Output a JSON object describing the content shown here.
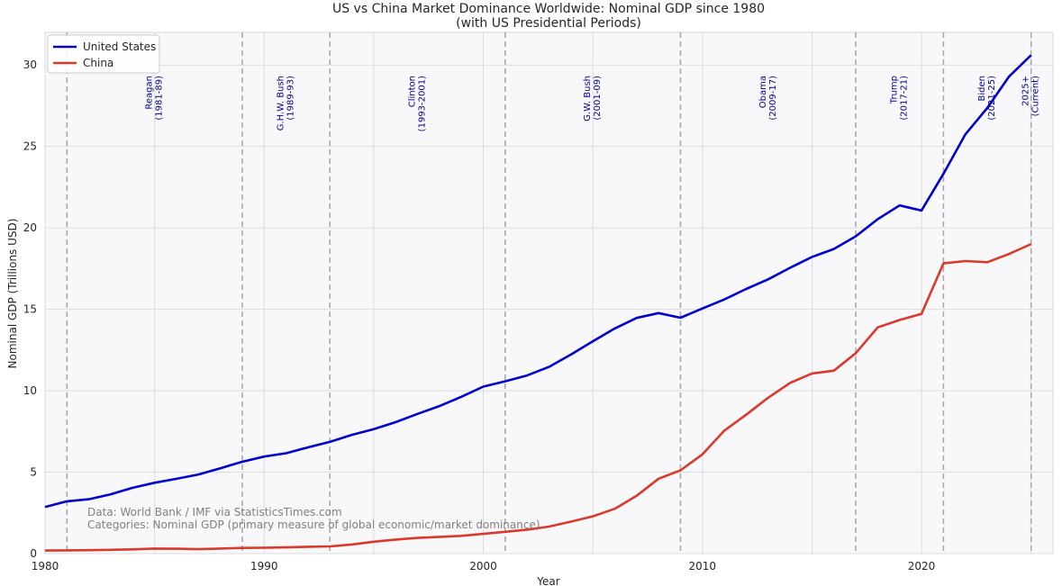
{
  "chart_data": {
    "type": "line",
    "title_line1": "US vs China Market Dominance Worldwide: Nominal GDP since 1980",
    "title_line2": "(with US Presidential Periods)",
    "xlabel": "Year",
    "ylabel": "Nominal GDP (Trillions USD)",
    "xlim": [
      1980,
      2026
    ],
    "ylim": [
      0,
      32
    ],
    "xticks": [
      1980,
      1990,
      2000,
      2010,
      2020
    ],
    "yticks": [
      0,
      5,
      10,
      15,
      20,
      25,
      30
    ],
    "grid": true,
    "legend_position": "top-left",
    "x": [
      1980,
      1981,
      1982,
      1983,
      1984,
      1985,
      1986,
      1987,
      1988,
      1989,
      1990,
      1991,
      1992,
      1993,
      1994,
      1995,
      1996,
      1997,
      1998,
      1999,
      2000,
      2001,
      2002,
      2003,
      2004,
      2005,
      2006,
      2007,
      2008,
      2009,
      2010,
      2011,
      2012,
      2013,
      2014,
      2015,
      2016,
      2017,
      2018,
      2019,
      2020,
      2021,
      2022,
      2023,
      2024,
      2025
    ],
    "series": [
      {
        "name": "United States",
        "color": "#0000cd",
        "values": [
          2.86,
          3.21,
          3.34,
          3.64,
          4.04,
          4.35,
          4.59,
          4.86,
          5.24,
          5.64,
          5.96,
          6.16,
          6.52,
          6.86,
          7.29,
          7.64,
          8.07,
          8.58,
          9.06,
          9.63,
          10.25,
          10.58,
          10.94,
          11.46,
          12.22,
          13.04,
          13.82,
          14.47,
          14.77,
          14.48,
          15.05,
          15.6,
          16.25,
          16.84,
          17.55,
          18.21,
          18.7,
          19.48,
          20.53,
          21.38,
          21.06,
          23.32,
          25.74,
          27.36,
          29.3,
          30.6
        ]
      },
      {
        "name": "China",
        "color": "#d93a2b",
        "values": [
          0.19,
          0.2,
          0.21,
          0.23,
          0.26,
          0.31,
          0.3,
          0.27,
          0.31,
          0.35,
          0.36,
          0.38,
          0.42,
          0.44,
          0.56,
          0.73,
          0.86,
          0.96,
          1.03,
          1.09,
          1.21,
          1.34,
          1.47,
          1.66,
          1.96,
          2.29,
          2.75,
          3.55,
          4.6,
          5.11,
          6.09,
          7.55,
          8.53,
          9.57,
          10.48,
          11.06,
          11.23,
          12.31,
          13.89,
          14.34,
          14.72,
          17.82,
          17.96,
          17.89,
          18.4,
          19.0
        ]
      }
    ],
    "presidents": [
      {
        "start": 1981,
        "name": "Reagan",
        "years": "(1981-89)",
        "label_x": 1985
      },
      {
        "start": 1989,
        "name": "G.H.W. Bush",
        "years": "(1989-93)",
        "label_x": 1991
      },
      {
        "start": 1993,
        "name": "Clinton",
        "years": "(1993-2001)",
        "label_x": 1997
      },
      {
        "start": 2001,
        "name": "G.W. Bush",
        "years": "(2001-09)",
        "label_x": 2005
      },
      {
        "start": 2009,
        "name": "Obama",
        "years": "(2009-17)",
        "label_x": 2013
      },
      {
        "start": 2017,
        "name": "Trump",
        "years": "(2017-21)",
        "label_x": 2019
      },
      {
        "start": 2021,
        "name": "Biden",
        "years": "(2021-25)",
        "label_x": 2023
      },
      {
        "start": 2025,
        "name": "2025+",
        "years": "(Current)",
        "label_x": 2025
      }
    ],
    "notes": [
      "Data: World Bank / IMF via StatisticsTimes.com",
      "Categories: Nominal GDP (primary measure of global economic/market dominance)"
    ]
  }
}
